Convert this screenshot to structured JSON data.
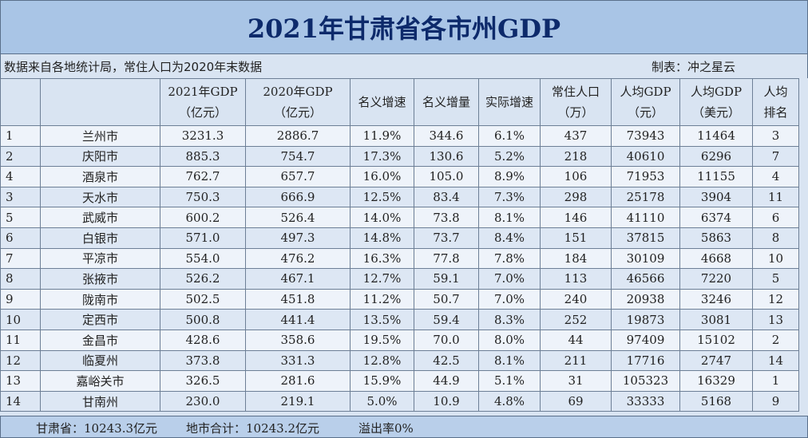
{
  "title": "2021年甘肃省各市州GDP",
  "source_note": "数据来自各地统计局，常住人口为2020年末数据",
  "author": "制表：冲之星云",
  "headers": [
    {
      "l1": "",
      "l2": ""
    },
    {
      "l1": "",
      "l2": ""
    },
    {
      "l1": "2021年GDP",
      "l2": "（亿元）"
    },
    {
      "l1": "2020年GDP",
      "l2": "（亿元）"
    },
    {
      "l1": "名义增速",
      "l2": ""
    },
    {
      "l1": "名义增量",
      "l2": ""
    },
    {
      "l1": "实际增速",
      "l2": ""
    },
    {
      "l1": "常住人口",
      "l2": "（万）"
    },
    {
      "l1": "人均GDP",
      "l2": "（元）"
    },
    {
      "l1": "人均GDP",
      "l2": "（美元）"
    },
    {
      "l1": "人均",
      "l2": "排名"
    }
  ],
  "rows": [
    [
      "1",
      "兰州市",
      "3231.3",
      "2886.7",
      "11.9%",
      "344.6",
      "6.1%",
      "437",
      "73943",
      "11464",
      "3"
    ],
    [
      "2",
      "庆阳市",
      "885.3",
      "754.7",
      "17.3%",
      "130.6",
      "5.2%",
      "218",
      "40610",
      "6296",
      "7"
    ],
    [
      "4",
      "酒泉市",
      "762.7",
      "657.7",
      "16.0%",
      "105.0",
      "8.9%",
      "106",
      "71953",
      "11155",
      "4"
    ],
    [
      "3",
      "天水市",
      "750.3",
      "666.9",
      "12.5%",
      "83.4",
      "7.3%",
      "298",
      "25178",
      "3904",
      "11"
    ],
    [
      "5",
      "武威市",
      "600.2",
      "526.4",
      "14.0%",
      "73.8",
      "8.1%",
      "146",
      "41110",
      "6374",
      "6"
    ],
    [
      "6",
      "白银市",
      "571.0",
      "497.3",
      "14.8%",
      "73.7",
      "8.4%",
      "151",
      "37815",
      "5863",
      "8"
    ],
    [
      "7",
      "平凉市",
      "554.0",
      "476.2",
      "16.3%",
      "77.8",
      "7.8%",
      "184",
      "30109",
      "4668",
      "10"
    ],
    [
      "8",
      "张掖市",
      "526.2",
      "467.1",
      "12.7%",
      "59.1",
      "7.0%",
      "113",
      "46566",
      "7220",
      "5"
    ],
    [
      "9",
      "陇南市",
      "502.5",
      "451.8",
      "11.2%",
      "50.7",
      "7.0%",
      "240",
      "20938",
      "3246",
      "12"
    ],
    [
      "10",
      "定西市",
      "500.8",
      "441.4",
      "13.5%",
      "59.4",
      "8.3%",
      "252",
      "19873",
      "3081",
      "13"
    ],
    [
      "11",
      "金昌市",
      "428.6",
      "358.6",
      "19.5%",
      "70.0",
      "8.0%",
      "44",
      "97409",
      "15102",
      "2"
    ],
    [
      "12",
      "临夏州",
      "373.8",
      "331.3",
      "12.8%",
      "42.5",
      "8.1%",
      "211",
      "17716",
      "2747",
      "14"
    ],
    [
      "13",
      "嘉峪关市",
      "326.5",
      "281.6",
      "15.9%",
      "44.9",
      "5.1%",
      "31",
      "105323",
      "16329",
      "1"
    ],
    [
      "14",
      "甘南州",
      "230.0",
      "219.1",
      "5.0%",
      "10.9",
      "4.8%",
      "69",
      "33333",
      "5168",
      "9"
    ]
  ],
  "footer": {
    "province": "甘肃省：10243.3亿元",
    "cities_total": "地市合计：10243.2亿元",
    "overflow": "溢出率0%"
  }
}
